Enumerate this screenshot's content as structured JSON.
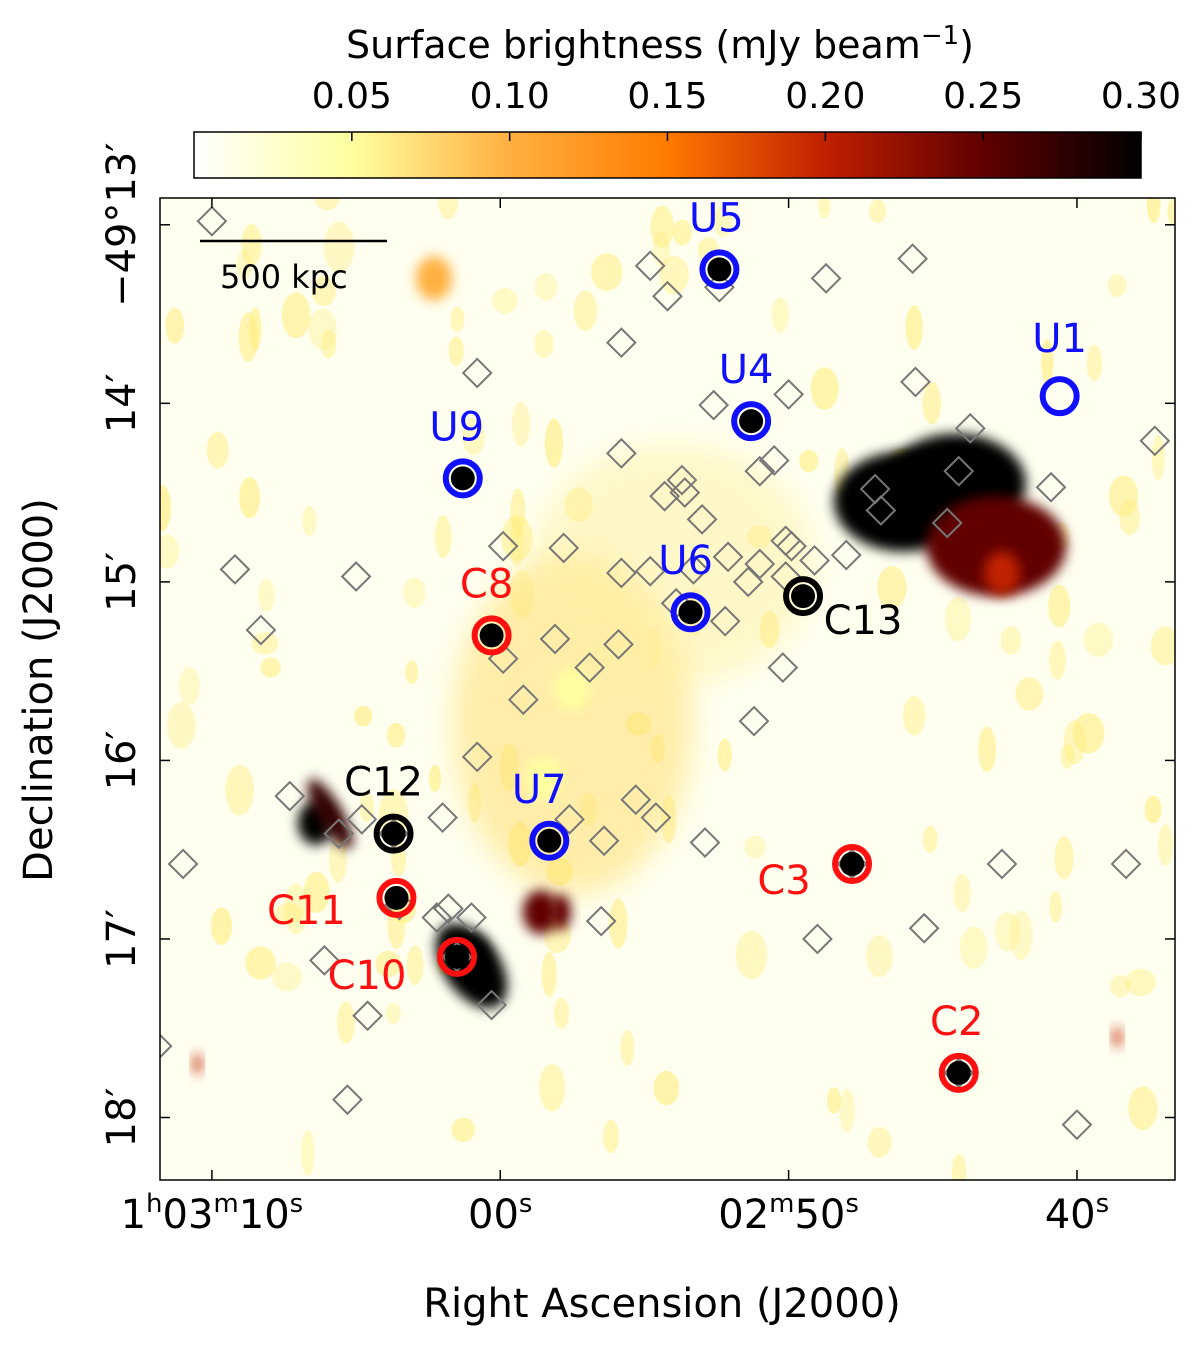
{
  "chart_data": {
    "type": "heatmap",
    "colorbar": {
      "label": "Surface brightness (mJy beam",
      "label_exponent": "−1",
      "label_close": ")",
      "ticks": [
        "0.05",
        "0.10",
        "0.15",
        "0.20",
        "0.25",
        "0.30"
      ],
      "tick_values": [
        0.05,
        0.1,
        0.15,
        0.2,
        0.25,
        0.3
      ],
      "range": [
        0.0,
        0.3
      ],
      "colormap": [
        "#ffffff",
        "#ffffa0",
        "#ffb040",
        "#ff7a00",
        "#c02000",
        "#600000",
        "#000000"
      ]
    },
    "xlabel": "Right Ascension (J2000)",
    "ylabel": "Declination (J2000)",
    "x_ticks": [
      {
        "main": "1",
        "sup1": "h",
        "mid": "03",
        "sup2": "m",
        "tail": "10",
        "sup3": "s",
        "seconds": 70
      },
      {
        "main": "00",
        "sup1": "s",
        "seconds": 60
      },
      {
        "main": "02",
        "sup1": "m",
        "mid": "50",
        "sup2": "s",
        "seconds": 50
      },
      {
        "main": "40",
        "sup1": "s",
        "seconds": 40
      }
    ],
    "xlim_seconds": [
      71.8,
      36.6
    ],
    "y_ticks": [
      {
        "label": "−49°13′",
        "arcmin": 13
      },
      {
        "label": "14′",
        "arcmin": 14
      },
      {
        "label": "15′",
        "arcmin": 15
      },
      {
        "label": "16′",
        "arcmin": 16
      },
      {
        "label": "17′",
        "arcmin": 17
      },
      {
        "label": "18′",
        "arcmin": 18
      }
    ],
    "ylim_arcmin": [
      12.85,
      18.35
    ],
    "scalebar_label": "500 kpc",
    "emission": [
      {
        "ra": 44.2,
        "dec": 14.45,
        "brightness": 0.3
      },
      {
        "ra": 46.0,
        "dec": 14.55,
        "brightness": 0.3
      },
      {
        "ra": 42.8,
        "dec": 14.8,
        "brightness": 0.25
      },
      {
        "ra": 42.6,
        "dec": 14.95,
        "brightness": 0.2
      },
      {
        "ra": 57.5,
        "dec": 15.6,
        "brightness": 0.07
      },
      {
        "ra": 58.5,
        "dec": 16.1,
        "brightness": 0.06
      },
      {
        "ra": 61.0,
        "dec": 17.1,
        "brightness": 0.3
      },
      {
        "ra": 66.4,
        "dec": 16.35,
        "brightness": 0.28
      },
      {
        "ra": 58.6,
        "dec": 16.85,
        "brightness": 0.24
      },
      {
        "ra": 62.3,
        "dec": 13.3,
        "brightness": 0.1
      }
    ],
    "circled_sources": [
      {
        "label": "U1",
        "group": "unconfirmed",
        "ra": 40.6,
        "dec": 13.96,
        "filled": false
      },
      {
        "label": "U4",
        "group": "unconfirmed",
        "ra": 51.3,
        "dec": 14.1,
        "filled": true
      },
      {
        "label": "U5",
        "group": "unconfirmed",
        "ra": 52.4,
        "dec": 13.25,
        "filled": true
      },
      {
        "label": "U6",
        "group": "unconfirmed",
        "ra": 53.4,
        "dec": 15.17,
        "filled": true
      },
      {
        "label": "U7",
        "group": "unconfirmed",
        "ra": 58.3,
        "dec": 16.45,
        "filled": true
      },
      {
        "label": "U9",
        "group": "unconfirmed",
        "ra": 61.3,
        "dec": 14.42,
        "filled": true
      },
      {
        "label": "C2",
        "group": "confirmed",
        "ra": 44.1,
        "dec": 17.75,
        "filled": true
      },
      {
        "label": "C3",
        "group": "confirmed",
        "ra": 47.8,
        "dec": 16.58,
        "filled": true
      },
      {
        "label": "C8",
        "group": "confirmed",
        "ra": 60.3,
        "dec": 15.3,
        "filled": true
      },
      {
        "label": "C10",
        "group": "confirmed",
        "ra": 61.5,
        "dec": 17.1,
        "filled": true
      },
      {
        "label": "C11",
        "group": "confirmed",
        "ra": 63.6,
        "dec": 16.77,
        "filled": true
      },
      {
        "label": "C12",
        "group": "other",
        "ra": 63.7,
        "dec": 16.41,
        "filled": true
      },
      {
        "label": "C13",
        "group": "other",
        "ra": 49.5,
        "dec": 15.08,
        "filled": true
      }
    ],
    "group_colors": {
      "confirmed": "#ff1010",
      "unconfirmed": "#1010ff",
      "other": "#000000"
    },
    "diamond_color": "#777777",
    "member_diamonds": [
      {
        "ra": 70.0,
        "dec": 12.98
      },
      {
        "ra": 54.8,
        "dec": 13.23
      },
      {
        "ra": 54.2,
        "dec": 13.4
      },
      {
        "ra": 52.4,
        "dec": 13.35
      },
      {
        "ra": 48.7,
        "dec": 13.3
      },
      {
        "ra": 45.7,
        "dec": 13.19
      },
      {
        "ra": 55.8,
        "dec": 13.66
      },
      {
        "ra": 60.8,
        "dec": 13.83
      },
      {
        "ra": 45.6,
        "dec": 13.88
      },
      {
        "ra": 50.0,
        "dec": 13.95
      },
      {
        "ra": 52.6,
        "dec": 14.01
      },
      {
        "ra": 43.7,
        "dec": 14.14
      },
      {
        "ra": 37.3,
        "dec": 14.21
      },
      {
        "ra": 55.8,
        "dec": 14.28
      },
      {
        "ra": 51.0,
        "dec": 14.38
      },
      {
        "ra": 50.5,
        "dec": 14.32
      },
      {
        "ra": 53.7,
        "dec": 14.43
      },
      {
        "ra": 53.6,
        "dec": 14.5
      },
      {
        "ra": 54.3,
        "dec": 14.52
      },
      {
        "ra": 44.1,
        "dec": 14.38
      },
      {
        "ra": 40.9,
        "dec": 14.47
      },
      {
        "ra": 47.0,
        "dec": 14.48
      },
      {
        "ra": 46.8,
        "dec": 14.6
      },
      {
        "ra": 44.5,
        "dec": 14.67
      },
      {
        "ra": 53.0,
        "dec": 14.65
      },
      {
        "ra": 50.1,
        "dec": 14.77
      },
      {
        "ra": 49.9,
        "dec": 14.8
      },
      {
        "ra": 59.9,
        "dec": 14.8
      },
      {
        "ra": 57.8,
        "dec": 14.81
      },
      {
        "ra": 52.1,
        "dec": 14.86
      },
      {
        "ra": 51.0,
        "dec": 14.9
      },
      {
        "ra": 50.1,
        "dec": 14.97
      },
      {
        "ra": 49.1,
        "dec": 14.88
      },
      {
        "ra": 48.0,
        "dec": 14.85
      },
      {
        "ra": 53.3,
        "dec": 14.93
      },
      {
        "ra": 54.8,
        "dec": 14.94
      },
      {
        "ra": 55.8,
        "dec": 14.95
      },
      {
        "ra": 51.4,
        "dec": 15.0
      },
      {
        "ra": 69.2,
        "dec": 14.93
      },
      {
        "ra": 65.0,
        "dec": 14.97
      },
      {
        "ra": 53.9,
        "dec": 15.12
      },
      {
        "ra": 52.2,
        "dec": 15.22
      },
      {
        "ra": 68.3,
        "dec": 15.27
      },
      {
        "ra": 58.1,
        "dec": 15.32
      },
      {
        "ra": 55.9,
        "dec": 15.35
      },
      {
        "ra": 59.9,
        "dec": 15.43
      },
      {
        "ra": 56.9,
        "dec": 15.48
      },
      {
        "ra": 50.2,
        "dec": 15.48
      },
      {
        "ra": 59.2,
        "dec": 15.66
      },
      {
        "ra": 51.2,
        "dec": 15.78
      },
      {
        "ra": 60.8,
        "dec": 15.98
      },
      {
        "ra": 67.3,
        "dec": 16.2
      },
      {
        "ra": 55.3,
        "dec": 16.22
      },
      {
        "ra": 64.8,
        "dec": 16.33
      },
      {
        "ra": 54.6,
        "dec": 16.32
      },
      {
        "ra": 62.0,
        "dec": 16.32
      },
      {
        "ra": 57.6,
        "dec": 16.33
      },
      {
        "ra": 65.6,
        "dec": 16.41
      },
      {
        "ra": 56.4,
        "dec": 16.45
      },
      {
        "ra": 52.9,
        "dec": 16.46
      },
      {
        "ra": 71.0,
        "dec": 16.58
      },
      {
        "ra": 63.7,
        "dec": 16.41
      },
      {
        "ra": 47.8,
        "dec": 16.58
      },
      {
        "ra": 38.3,
        "dec": 16.58
      },
      {
        "ra": 42.6,
        "dec": 16.58
      },
      {
        "ra": 61.8,
        "dec": 16.83
      },
      {
        "ra": 62.2,
        "dec": 16.88
      },
      {
        "ra": 61.0,
        "dec": 16.88
      },
      {
        "ra": 63.5,
        "dec": 16.81
      },
      {
        "ra": 56.5,
        "dec": 16.9
      },
      {
        "ra": 49.0,
        "dec": 17.0
      },
      {
        "ra": 45.3,
        "dec": 16.94
      },
      {
        "ra": 61.5,
        "dec": 17.1
      },
      {
        "ra": 66.1,
        "dec": 17.12
      },
      {
        "ra": 60.3,
        "dec": 17.37
      },
      {
        "ra": 64.6,
        "dec": 17.43
      },
      {
        "ra": 44.1,
        "dec": 17.75
      },
      {
        "ra": 65.3,
        "dec": 17.9
      },
      {
        "ra": 40.0,
        "dec": 18.04
      },
      {
        "ra": 71.9,
        "dec": 17.6
      }
    ]
  }
}
